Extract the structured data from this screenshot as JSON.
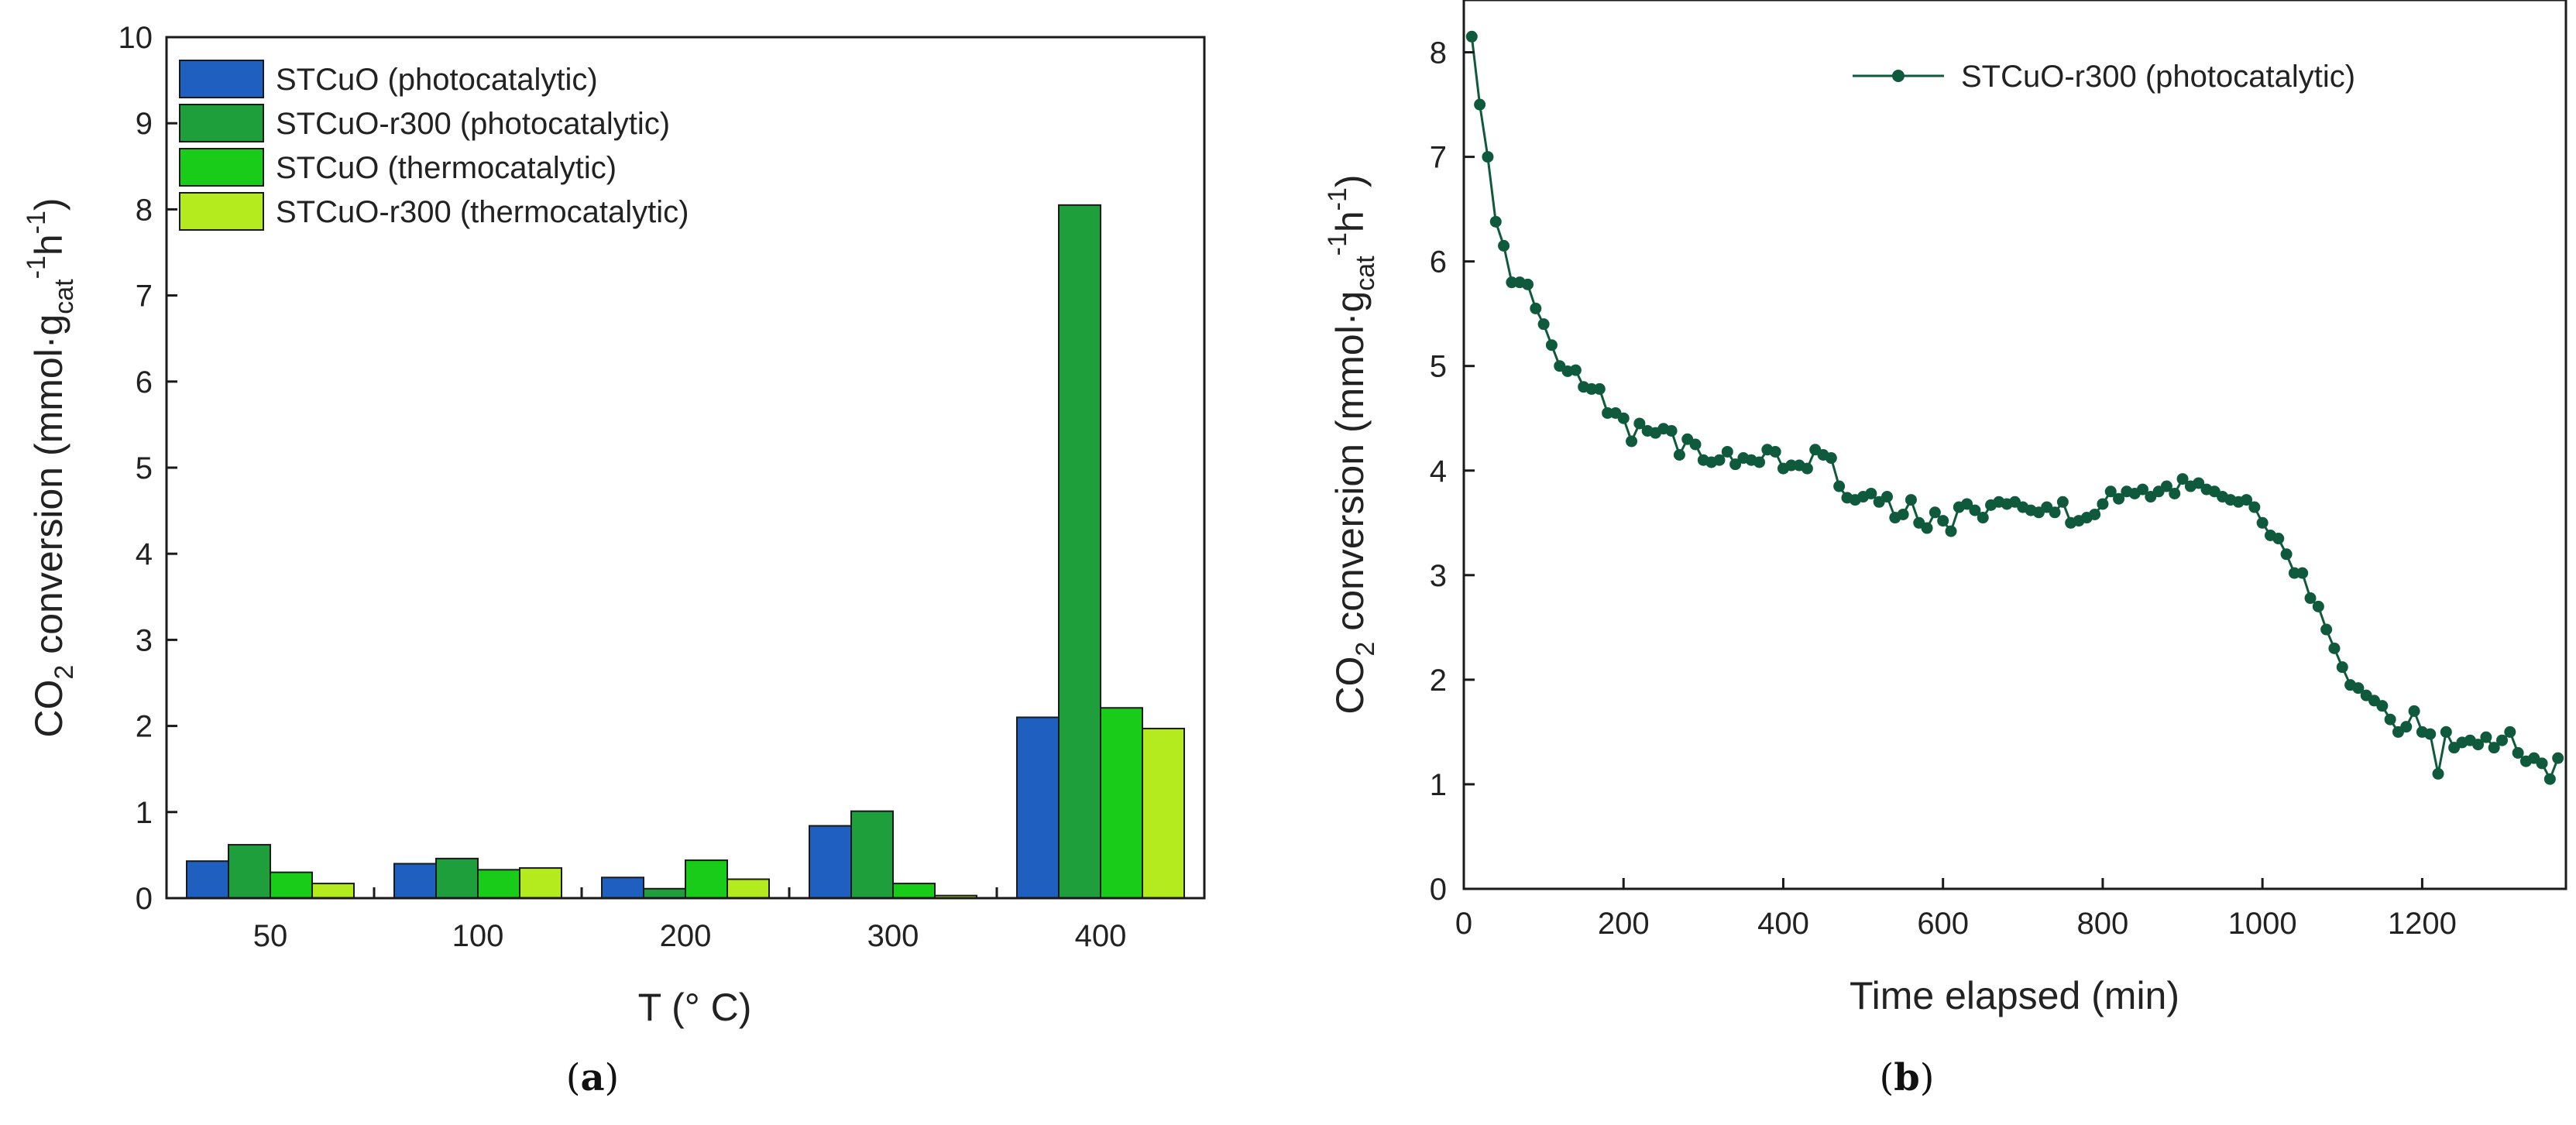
{
  "chart_data": [
    {
      "type": "bar",
      "panel_label": "a",
      "xlabel": "T (° C)",
      "ylabel": {
        "prefix": "CO",
        "sub1": "2",
        "mid": " conversion (mmol·g",
        "sub2": "cat",
        "sup1": "-1",
        "mid2": "h",
        "sup2": "-1",
        "suffix": ")"
      },
      "ylim": [
        0,
        10
      ],
      "yticks": [
        0,
        1,
        2,
        3,
        4,
        5,
        6,
        7,
        8,
        9,
        10
      ],
      "categories": [
        "50",
        "100",
        "200",
        "300",
        "400"
      ],
      "series": [
        {
          "name": "STCuO (photocatalytic)",
          "color": "#1f5fbf",
          "values": [
            0.43,
            0.4,
            0.24,
            0.84,
            2.1
          ]
        },
        {
          "name": "STCuO-r300 (photocatalytic)",
          "color": "#1f9e3c",
          "values": [
            0.62,
            0.46,
            0.11,
            1.01,
            8.05
          ]
        },
        {
          "name": "STCuO (thermocatalytic)",
          "color": "#19cc19",
          "values": [
            0.3,
            0.33,
            0.44,
            0.17,
            2.21
          ]
        },
        {
          "name": "STCuO-r300 (thermocatalytic)",
          "color": "#b4eb1e",
          "values": [
            0.17,
            0.35,
            0.22,
            0.03,
            1.97
          ]
        }
      ],
      "legend_position": "top-left"
    },
    {
      "type": "line",
      "panel_label": "b",
      "xlabel": "Time elapsed (min)",
      "ylabel": {
        "prefix": "CO",
        "sub1": "2",
        "mid": " conversion (mmol·g",
        "sub2": "cat",
        "sup1": "-1",
        "mid2": "h",
        "sup2": "-1",
        "suffix": ")"
      },
      "xlim": [
        0,
        1380
      ],
      "ylim": [
        0,
        8.5
      ],
      "xticks": [
        0,
        200,
        400,
        600,
        800,
        1000,
        1200
      ],
      "yticks": [
        0,
        1,
        2,
        3,
        4,
        5,
        6,
        7,
        8
      ],
      "series": [
        {
          "name": "STCuO-r300 (photocatalytic)",
          "color": "#0f5a3c",
          "x": [
            10,
            20,
            30,
            40,
            50,
            60,
            70,
            80,
            90,
            100,
            110,
            120,
            130,
            140,
            150,
            160,
            170,
            180,
            190,
            200,
            210,
            220,
            230,
            240,
            250,
            260,
            270,
            280,
            290,
            300,
            310,
            320,
            330,
            340,
            350,
            360,
            370,
            380,
            390,
            400,
            410,
            420,
            430,
            440,
            450,
            460,
            470,
            480,
            490,
            500,
            510,
            520,
            530,
            540,
            550,
            560,
            570,
            580,
            590,
            600,
            610,
            620,
            630,
            640,
            650,
            660,
            670,
            680,
            690,
            700,
            710,
            720,
            730,
            740,
            750,
            760,
            770,
            780,
            790,
            800,
            810,
            820,
            830,
            840,
            850,
            860,
            870,
            880,
            890,
            900,
            910,
            920,
            930,
            940,
            950,
            960,
            970,
            980,
            990,
            1000,
            1010,
            1020,
            1030,
            1040,
            1050,
            1060,
            1070,
            1080,
            1090,
            1100,
            1110,
            1120,
            1130,
            1140,
            1150,
            1160,
            1170,
            1180,
            1190,
            1200,
            1210,
            1220,
            1230,
            1240,
            1250,
            1260,
            1270,
            1280,
            1290,
            1300,
            1310,
            1320,
            1330,
            1340,
            1350,
            1360,
            1370
          ],
          "y": [
            8.15,
            7.5,
            7.0,
            6.38,
            6.15,
            5.8,
            5.8,
            5.78,
            5.55,
            5.4,
            5.2,
            5.0,
            4.95,
            4.96,
            4.8,
            4.78,
            4.78,
            4.55,
            4.55,
            4.5,
            4.28,
            4.45,
            4.38,
            4.36,
            4.4,
            4.38,
            4.15,
            4.3,
            4.25,
            4.1,
            4.08,
            4.1,
            4.18,
            4.06,
            4.12,
            4.1,
            4.08,
            4.2,
            4.18,
            4.02,
            4.05,
            4.05,
            4.02,
            4.2,
            4.15,
            4.12,
            3.85,
            3.74,
            3.72,
            3.75,
            3.78,
            3.7,
            3.75,
            3.55,
            3.58,
            3.72,
            3.5,
            3.45,
            3.6,
            3.52,
            3.42,
            3.65,
            3.68,
            3.62,
            3.55,
            3.67,
            3.7,
            3.68,
            3.7,
            3.65,
            3.62,
            3.6,
            3.65,
            3.6,
            3.7,
            3.5,
            3.52,
            3.55,
            3.58,
            3.68,
            3.8,
            3.73,
            3.8,
            3.78,
            3.82,
            3.75,
            3.8,
            3.85,
            3.78,
            3.92,
            3.85,
            3.88,
            3.82,
            3.8,
            3.75,
            3.72,
            3.7,
            3.72,
            3.65,
            3.5,
            3.38,
            3.35,
            3.2,
            3.02,
            3.02,
            2.78,
            2.7,
            2.48,
            2.3,
            2.12,
            1.95,
            1.92,
            1.85,
            1.8,
            1.75,
            1.62,
            1.5,
            1.55,
            1.7,
            1.5,
            1.48,
            1.1,
            1.5,
            1.35,
            1.4,
            1.42,
            1.38,
            1.45,
            1.35,
            1.42,
            1.5,
            1.3,
            1.22,
            1.25,
            1.2,
            1.05,
            1.25
          ]
        }
      ],
      "legend_position": "top-right"
    }
  ]
}
